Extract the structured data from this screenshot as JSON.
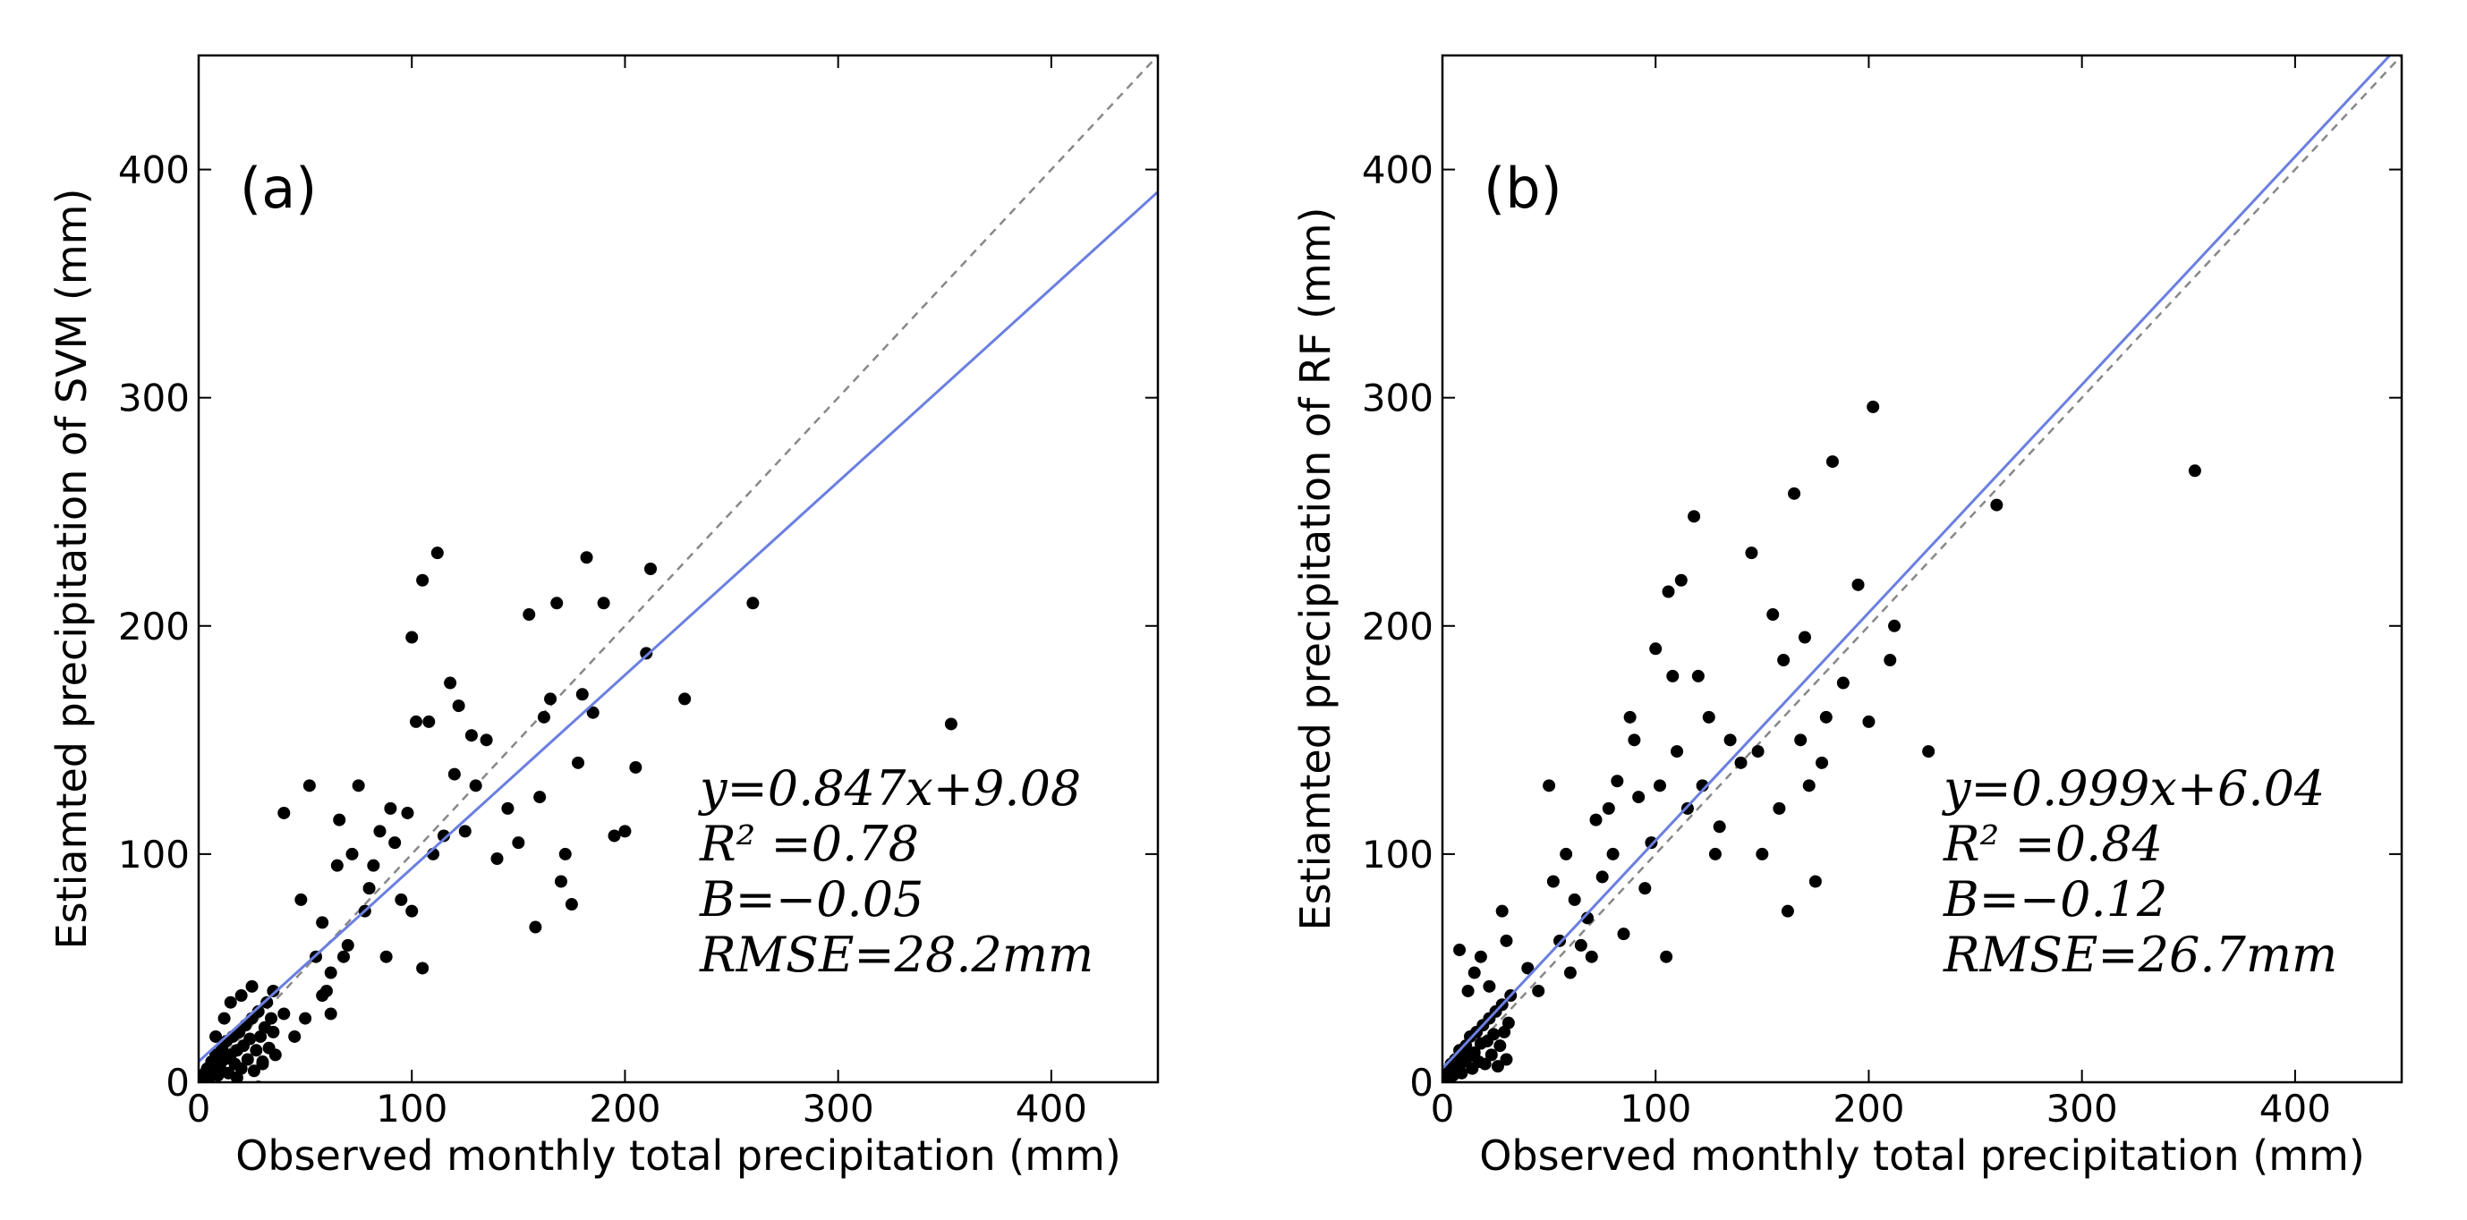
{
  "chart_data": [
    {
      "type": "scatter",
      "panel_label": "(a)",
      "xlabel": "Observed monthly total precipitation (mm)",
      "ylabel": "Estiamted precipitation of SVM (mm)",
      "xlim": [
        0,
        450
      ],
      "ylim": [
        0,
        450
      ],
      "xticks": [
        0,
        100,
        200,
        300,
        400
      ],
      "yticks": [
        0,
        100,
        200,
        300,
        400
      ],
      "x_tick_labels": [
        "0",
        "100",
        "200",
        "300",
        "400"
      ],
      "y_tick_labels": [
        "0",
        "100",
        "200",
        "300",
        "400"
      ],
      "grid": false,
      "reference_line": {
        "name": "1:1 line",
        "style": "dashed",
        "color": "#888888",
        "slope": 1,
        "intercept": 0
      },
      "fit_line": {
        "name": "regression",
        "color": "#6b7fe0",
        "slope": 0.847,
        "intercept": 9.08
      },
      "annotations": [
        "y=0.847x+9.08",
        "R² =0.78",
        "B=−0.05",
        "RMSE=28.2mm"
      ],
      "legend_position": "bottom-right",
      "series": [
        {
          "name": "monthly precipitation",
          "color": "#000000",
          "points": [
            [
              2,
              1
            ],
            [
              3,
              4
            ],
            [
              4,
              6
            ],
            [
              5,
              2
            ],
            [
              6,
              9
            ],
            [
              7,
              5
            ],
            [
              8,
              12
            ],
            [
              9,
              3
            ],
            [
              10,
              7
            ],
            [
              11,
              15
            ],
            [
              12,
              10
            ],
            [
              13,
              18
            ],
            [
              14,
              4
            ],
            [
              15,
              12
            ],
            [
              16,
              20
            ],
            [
              17,
              8
            ],
            [
              18,
              14
            ],
            [
              19,
              22
            ],
            [
              20,
              6
            ],
            [
              21,
              16
            ],
            [
              22,
              25
            ],
            [
              23,
              10
            ],
            [
              24,
              19
            ],
            [
              25,
              28
            ],
            [
              26,
              5
            ],
            [
              27,
              14
            ],
            [
              28,
              31
            ],
            [
              29,
              20
            ],
            [
              30,
              9
            ],
            [
              31,
              24
            ],
            [
              32,
              35
            ],
            [
              33,
              15
            ],
            [
              34,
              28
            ],
            [
              35,
              40
            ],
            [
              36,
              12
            ],
            [
              8,
              20
            ],
            [
              12,
              28
            ],
            [
              15,
              35
            ],
            [
              20,
              38
            ],
            [
              25,
              42
            ],
            [
              5,
              -2
            ],
            [
              15,
              -3
            ],
            [
              28,
              -2
            ],
            [
              40,
              -4
            ],
            [
              18,
              2
            ],
            [
              30,
              8
            ],
            [
              35,
              22
            ],
            [
              40,
              30
            ],
            [
              45,
              20
            ],
            [
              50,
              28
            ],
            [
              55,
              55
            ],
            [
              58,
              70
            ],
            [
              60,
              40
            ],
            [
              62,
              30
            ],
            [
              65,
              95
            ],
            [
              66,
              115
            ],
            [
              68,
              55
            ],
            [
              70,
              60
            ],
            [
              72,
              100
            ],
            [
              75,
              130
            ],
            [
              78,
              75
            ],
            [
              80,
              85
            ],
            [
              82,
              95
            ],
            [
              85,
              110
            ],
            [
              88,
              55
            ],
            [
              90,
              120
            ],
            [
              92,
              105
            ],
            [
              95,
              80
            ],
            [
              98,
              118
            ],
            [
              100,
              75
            ],
            [
              100,
              195
            ],
            [
              102,
              158
            ],
            [
              105,
              50
            ],
            [
              105,
              220
            ],
            [
              108,
              158
            ],
            [
              110,
              100
            ],
            [
              112,
              232
            ],
            [
              115,
              108
            ],
            [
              118,
              175
            ],
            [
              120,
              135
            ],
            [
              122,
              165
            ],
            [
              125,
              110
            ],
            [
              128,
              152
            ],
            [
              130,
              130
            ],
            [
              135,
              150
            ],
            [
              140,
              98
            ],
            [
              145,
              120
            ],
            [
              150,
              105
            ],
            [
              155,
              205
            ],
            [
              158,
              68
            ],
            [
              160,
              125
            ],
            [
              162,
              160
            ],
            [
              165,
              168
            ],
            [
              168,
              210
            ],
            [
              170,
              88
            ],
            [
              172,
              100
            ],
            [
              175,
              78
            ],
            [
              178,
              140
            ],
            [
              180,
              170
            ],
            [
              182,
              230
            ],
            [
              185,
              162
            ],
            [
              190,
              210
            ],
            [
              195,
              108
            ],
            [
              200,
              110
            ],
            [
              205,
              138
            ],
            [
              210,
              188
            ],
            [
              212,
              225
            ],
            [
              228,
              168
            ],
            [
              260,
              210
            ],
            [
              353,
              157
            ],
            [
              40,
              118
            ],
            [
              48,
              80
            ],
            [
              52,
              130
            ],
            [
              58,
              38
            ],
            [
              62,
              48
            ]
          ]
        }
      ]
    },
    {
      "type": "scatter",
      "panel_label": "(b)",
      "xlabel": "Observed monthly total precipitation (mm)",
      "ylabel": "Estiamted precipitation of RF (mm)",
      "xlim": [
        0,
        450
      ],
      "ylim": [
        0,
        450
      ],
      "xticks": [
        0,
        100,
        200,
        300,
        400
      ],
      "yticks": [
        0,
        100,
        200,
        300,
        400
      ],
      "x_tick_labels": [
        "0",
        "100",
        "200",
        "300",
        "400"
      ],
      "y_tick_labels": [
        "0",
        "100",
        "200",
        "300",
        "400"
      ],
      "grid": false,
      "reference_line": {
        "name": "1:1 line",
        "style": "dashed",
        "color": "#888888",
        "slope": 1,
        "intercept": 0
      },
      "fit_line": {
        "name": "regression",
        "color": "#6b7fe0",
        "slope": 0.999,
        "intercept": 6.04
      },
      "annotations": [
        "y=0.999x+6.04",
        "R² =0.84",
        "B=−0.12",
        "RMSE=26.7mm"
      ],
      "legend_position": "bottom-right",
      "series": [
        {
          "name": "monthly precipitation",
          "color": "#000000",
          "points": [
            [
              2,
              1
            ],
            [
              3,
              5
            ],
            [
              4,
              8
            ],
            [
              5,
              3
            ],
            [
              6,
              10
            ],
            [
              7,
              6
            ],
            [
              8,
              14
            ],
            [
              9,
              4
            ],
            [
              10,
              9
            ],
            [
              11,
              16
            ],
            [
              12,
              11
            ],
            [
              13,
              20
            ],
            [
              14,
              6
            ],
            [
              15,
              13
            ],
            [
              16,
              22
            ],
            [
              17,
              9
            ],
            [
              18,
              17
            ],
            [
              19,
              25
            ],
            [
              20,
              8
            ],
            [
              21,
              18
            ],
            [
              22,
              28
            ],
            [
              23,
              12
            ],
            [
              24,
              21
            ],
            [
              25,
              31
            ],
            [
              26,
              7
            ],
            [
              27,
              16
            ],
            [
              28,
              34
            ],
            [
              29,
              22
            ],
            [
              30,
              10
            ],
            [
              31,
              26
            ],
            [
              32,
              38
            ],
            [
              8,
              58
            ],
            [
              12,
              40
            ],
            [
              15,
              48
            ],
            [
              18,
              55
            ],
            [
              22,
              42
            ],
            [
              28,
              75
            ],
            [
              30,
              62
            ],
            [
              35,
              -3
            ],
            [
              40,
              50
            ],
            [
              45,
              40
            ],
            [
              50,
              130
            ],
            [
              52,
              88
            ],
            [
              55,
              62
            ],
            [
              58,
              100
            ],
            [
              60,
              48
            ],
            [
              62,
              80
            ],
            [
              65,
              60
            ],
            [
              68,
              72
            ],
            [
              70,
              55
            ],
            [
              72,
              115
            ],
            [
              75,
              90
            ],
            [
              78,
              120
            ],
            [
              80,
              100
            ],
            [
              82,
              132
            ],
            [
              85,
              65
            ],
            [
              88,
              160
            ],
            [
              90,
              150
            ],
            [
              92,
              125
            ],
            [
              95,
              85
            ],
            [
              98,
              105
            ],
            [
              100,
              190
            ],
            [
              102,
              130
            ],
            [
              105,
              55
            ],
            [
              106,
              215
            ],
            [
              108,
              178
            ],
            [
              110,
              145
            ],
            [
              112,
              220
            ],
            [
              115,
              120
            ],
            [
              118,
              248
            ],
            [
              120,
              178
            ],
            [
              122,
              130
            ],
            [
              125,
              160
            ],
            [
              128,
              100
            ],
            [
              130,
              112
            ],
            [
              135,
              150
            ],
            [
              140,
              140
            ],
            [
              145,
              232
            ],
            [
              148,
              145
            ],
            [
              150,
              100
            ],
            [
              155,
              205
            ],
            [
              158,
              120
            ],
            [
              160,
              185
            ],
            [
              162,
              75
            ],
            [
              165,
              258
            ],
            [
              168,
              150
            ],
            [
              170,
              195
            ],
            [
              172,
              130
            ],
            [
              175,
              88
            ],
            [
              178,
              140
            ],
            [
              180,
              160
            ],
            [
              183,
              272
            ],
            [
              188,
              175
            ],
            [
              195,
              218
            ],
            [
              200,
              158
            ],
            [
              202,
              296
            ],
            [
              210,
              185
            ],
            [
              212,
              200
            ],
            [
              228,
              145
            ],
            [
              260,
              253
            ],
            [
              353,
              268
            ]
          ]
        }
      ]
    }
  ]
}
